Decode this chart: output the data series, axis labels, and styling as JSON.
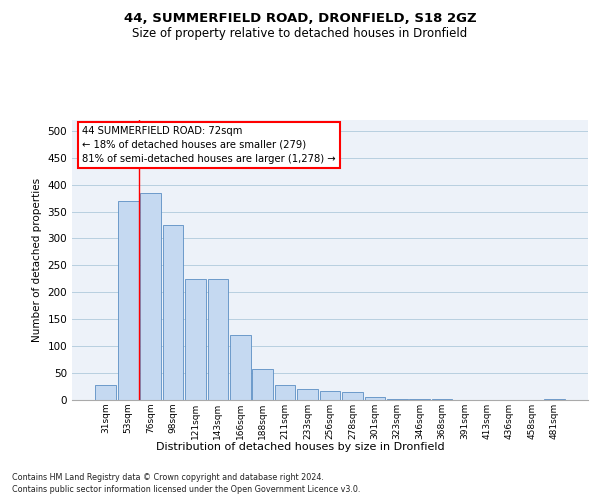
{
  "title1": "44, SUMMERFIELD ROAD, DRONFIELD, S18 2GZ",
  "title2": "Size of property relative to detached houses in Dronfield",
  "xlabel": "Distribution of detached houses by size in Dronfield",
  "ylabel": "Number of detached properties",
  "footnote1": "Contains HM Land Registry data © Crown copyright and database right 2024.",
  "footnote2": "Contains public sector information licensed under the Open Government Licence v3.0.",
  "annotation_line1": "44 SUMMERFIELD ROAD: 72sqm",
  "annotation_line2": "← 18% of detached houses are smaller (279)",
  "annotation_line3": "81% of semi-detached houses are larger (1,278) →",
  "bar_labels": [
    "31sqm",
    "53sqm",
    "76sqm",
    "98sqm",
    "121sqm",
    "143sqm",
    "166sqm",
    "188sqm",
    "211sqm",
    "233sqm",
    "256sqm",
    "278sqm",
    "301sqm",
    "323sqm",
    "346sqm",
    "368sqm",
    "391sqm",
    "413sqm",
    "436sqm",
    "458sqm",
    "481sqm"
  ],
  "bar_values": [
    28,
    370,
    385,
    325,
    225,
    225,
    120,
    57,
    28,
    20,
    16,
    14,
    6,
    2,
    1,
    1,
    0,
    0,
    0,
    0,
    2
  ],
  "bar_color": "#c5d9f1",
  "bar_edge_color": "#5b8ec4",
  "grid_color": "#b8cfe0",
  "background_color": "#edf2f9",
  "ylim": [
    0,
    520
  ],
  "yticks": [
    0,
    50,
    100,
    150,
    200,
    250,
    300,
    350,
    400,
    450,
    500
  ]
}
